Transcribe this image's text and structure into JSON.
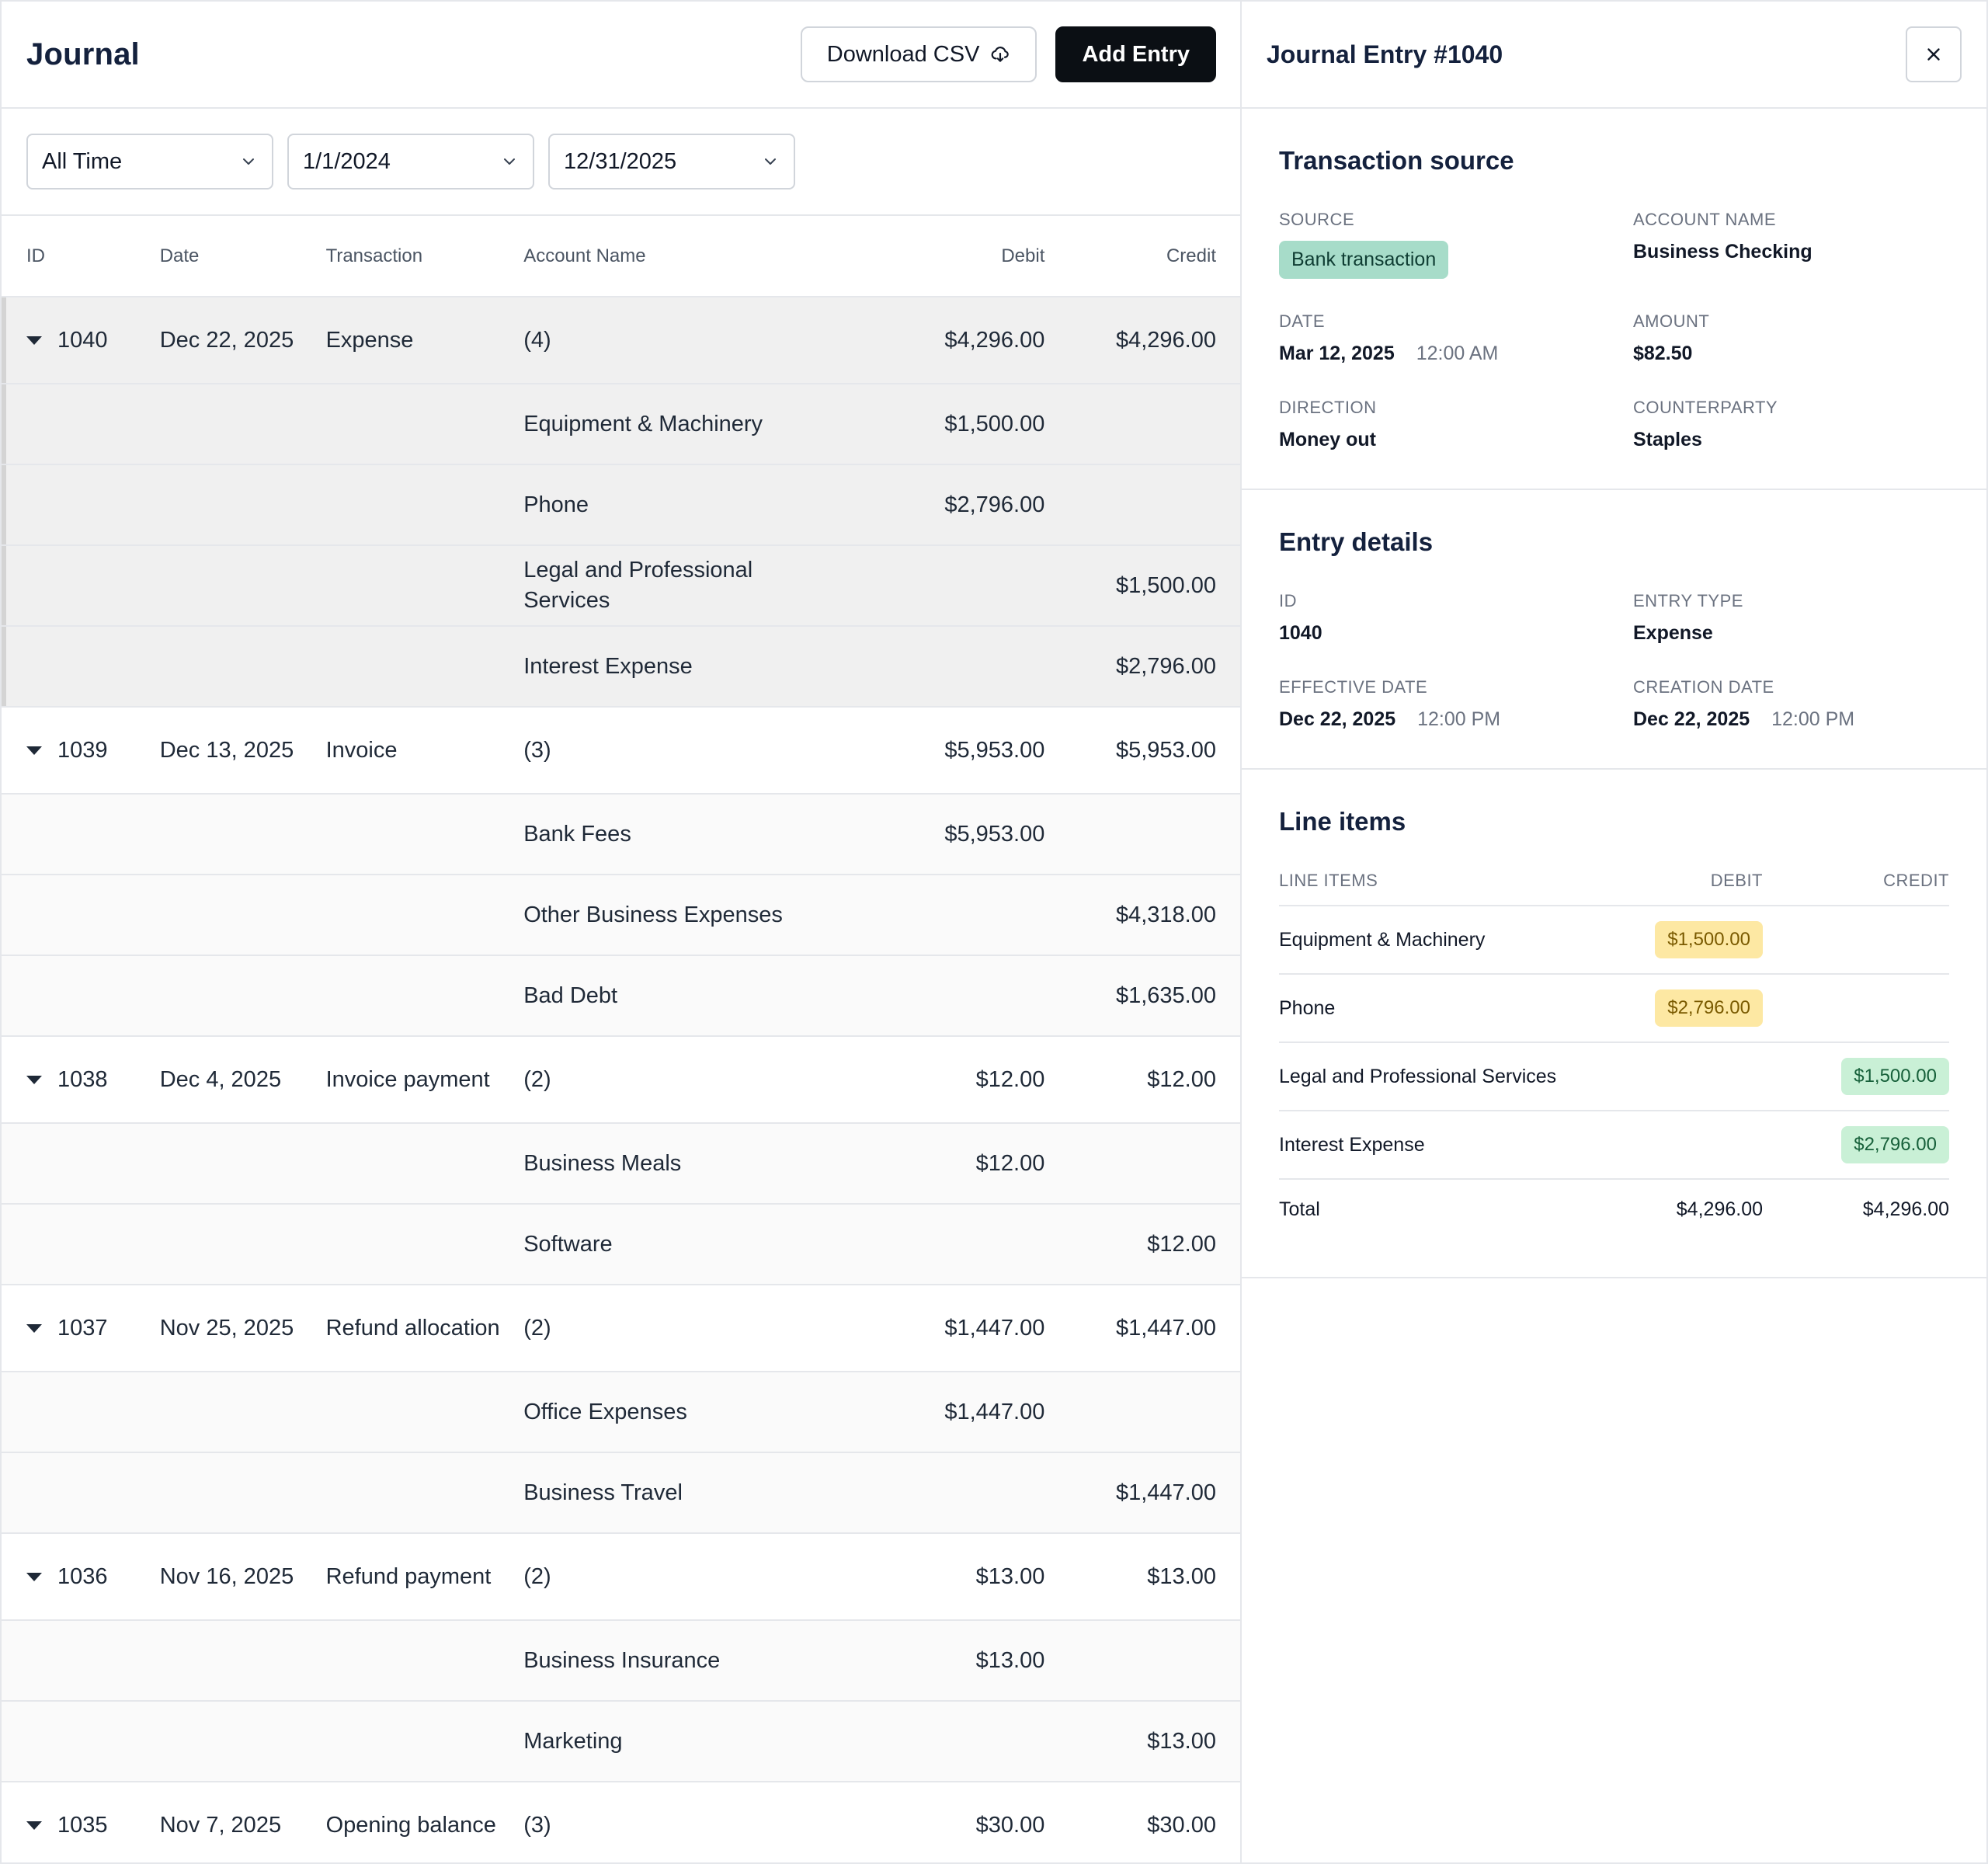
{
  "journal": {
    "title": "Journal",
    "download_label": "Download CSV",
    "add_label": "Add Entry",
    "filters": {
      "range": "All Time",
      "start": "1/1/2024",
      "end": "12/31/2025"
    },
    "columns": {
      "id": "ID",
      "date": "Date",
      "transaction": "Transaction",
      "account": "Account Name",
      "debit": "Debit",
      "credit": "Credit"
    },
    "rows": [
      {
        "kind": "parent",
        "sel": true,
        "id": "1040",
        "date": "Dec 22, 2025",
        "transaction": "Expense",
        "account": "(4)",
        "debit": "$4,296.00",
        "credit": "$4,296.00"
      },
      {
        "kind": "child",
        "sel": true,
        "account": "Equipment & Machinery",
        "debit": "$1,500.00",
        "credit": ""
      },
      {
        "kind": "child",
        "sel": true,
        "account": "Phone",
        "debit": "$2,796.00",
        "credit": ""
      },
      {
        "kind": "child",
        "sel": true,
        "account": "Legal and Professional Services",
        "debit": "",
        "credit": "$1,500.00"
      },
      {
        "kind": "child",
        "sel": true,
        "account": "Interest Expense",
        "debit": "",
        "credit": "$2,796.00"
      },
      {
        "kind": "parent",
        "id": "1039",
        "date": "Dec 13, 2025",
        "transaction": "Invoice",
        "account": "(3)",
        "debit": "$5,953.00",
        "credit": "$5,953.00"
      },
      {
        "kind": "child",
        "account": "Bank Fees",
        "debit": "$5,953.00",
        "credit": ""
      },
      {
        "kind": "child",
        "account": "Other Business Expenses",
        "debit": "",
        "credit": "$4,318.00"
      },
      {
        "kind": "child",
        "account": "Bad Debt",
        "debit": "",
        "credit": "$1,635.00"
      },
      {
        "kind": "parent",
        "id": "1038",
        "date": "Dec 4, 2025",
        "transaction": "Invoice payment",
        "account": "(2)",
        "debit": "$12.00",
        "credit": "$12.00"
      },
      {
        "kind": "child",
        "account": "Business Meals",
        "debit": "$12.00",
        "credit": ""
      },
      {
        "kind": "child",
        "account": "Software",
        "debit": "",
        "credit": "$12.00"
      },
      {
        "kind": "parent",
        "id": "1037",
        "date": "Nov 25, 2025",
        "transaction": "Refund allocation",
        "account": "(2)",
        "debit": "$1,447.00",
        "credit": "$1,447.00"
      },
      {
        "kind": "child",
        "account": "Office Expenses",
        "debit": "$1,447.00",
        "credit": ""
      },
      {
        "kind": "child",
        "account": "Business Travel",
        "debit": "",
        "credit": "$1,447.00"
      },
      {
        "kind": "parent",
        "id": "1036",
        "date": "Nov 16, 2025",
        "transaction": "Refund payment",
        "account": "(2)",
        "debit": "$13.00",
        "credit": "$13.00"
      },
      {
        "kind": "child",
        "account": "Business Insurance",
        "debit": "$13.00",
        "credit": ""
      },
      {
        "kind": "child",
        "account": "Marketing",
        "debit": "",
        "credit": "$13.00"
      },
      {
        "kind": "parent",
        "id": "1035",
        "date": "Nov 7, 2025",
        "transaction": "Opening balance",
        "account": "(3)",
        "debit": "$30.00",
        "credit": "$30.00"
      }
    ]
  },
  "panel": {
    "title": "Journal Entry #1040",
    "source": {
      "heading": "Transaction source",
      "source_label": "SOURCE",
      "source_value": "Bank transaction",
      "account_label": "ACCOUNT NAME",
      "account_value": "Business Checking",
      "date_label": "DATE",
      "date_value": "Mar 12, 2025",
      "date_time": "12:00 AM",
      "amount_label": "AMOUNT",
      "amount_value": "$82.50",
      "direction_label": "DIRECTION",
      "direction_value": "Money out",
      "counterparty_label": "COUNTERPARTY",
      "counterparty_value": "Staples"
    },
    "details": {
      "heading": "Entry details",
      "id_label": "ID",
      "id_value": "1040",
      "type_label": "ENTRY TYPE",
      "type_value": "Expense",
      "eff_label": "EFFECTIVE DATE",
      "eff_date": "Dec 22, 2025",
      "eff_time": "12:00 PM",
      "created_label": "CREATION DATE",
      "created_date": "Dec 22, 2025",
      "created_time": "12:00 PM"
    },
    "line_items": {
      "heading": "Line items",
      "col_item": "LINE ITEMS",
      "col_debit": "DEBIT",
      "col_credit": "CREDIT",
      "items": [
        {
          "name": "Equipment & Machinery",
          "debit": "$1,500.00",
          "credit": ""
        },
        {
          "name": "Phone",
          "debit": "$2,796.00",
          "credit": ""
        },
        {
          "name": "Legal and Professional Services",
          "debit": "",
          "credit": "$1,500.00"
        },
        {
          "name": "Interest Expense",
          "debit": "",
          "credit": "$2,796.00"
        }
      ],
      "total_label": "Total",
      "total_debit": "$4,296.00",
      "total_credit": "$4,296.00"
    }
  }
}
